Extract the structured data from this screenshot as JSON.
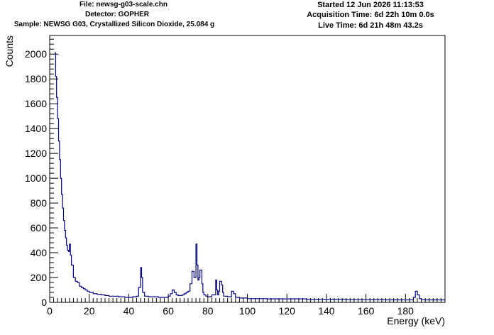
{
  "header": {
    "file": "File: newsg-g03-scale.chn",
    "detector": "Detector: GOPHER",
    "sample": "Sample: NEWSG G03, Crystallized Silicon Dioxide, 25.084 g",
    "started": "Started 12 Jun 2026 11:13:53",
    "acquisition_time": "Acquisition Time: 6d 22h 10m 0.0s",
    "live_time": "Live Time: 6d 21h 48m 43.2s"
  },
  "chart_data": {
    "type": "line",
    "title": "",
    "xlabel": "Energy (keV)",
    "ylabel": "Counts",
    "xlim": [
      0,
      200
    ],
    "ylim": [
      0,
      2150
    ],
    "x_ticks": [
      0,
      20,
      40,
      60,
      80,
      100,
      120,
      140,
      160,
      180
    ],
    "y_ticks": [
      0,
      200,
      400,
      600,
      800,
      1000,
      1200,
      1400,
      1600,
      1800,
      2000
    ],
    "grid": false,
    "line_color": "#000080",
    "series": [
      {
        "x": [
          2.5,
          3,
          3.5,
          4,
          4.5,
          5,
          5.5,
          6,
          6.5,
          7,
          7.5,
          8,
          8.5,
          9,
          9.5,
          10,
          10.5,
          11,
          12,
          13,
          14,
          15,
          16,
          17,
          18,
          19,
          20,
          22,
          24,
          26,
          28,
          30,
          32,
          35,
          38,
          40,
          42,
          44,
          45,
          46,
          46.5,
          47,
          48,
          50,
          55,
          60,
          61,
          62,
          63,
          64,
          65,
          67,
          68,
          69,
          70,
          71,
          72,
          73,
          74,
          74.5,
          75,
          75.5,
          76,
          77,
          77.5,
          78,
          79,
          80,
          82,
          84,
          84.5,
          85,
          85.5,
          86,
          87,
          87.5,
          88,
          89,
          90,
          92,
          93,
          94,
          96,
          100,
          110,
          120,
          130,
          140,
          150,
          160,
          170,
          180,
          184,
          185,
          186,
          187,
          188,
          190,
          195,
          200
        ],
        "y": [
          2010,
          1820,
          1650,
          1480,
          1300,
          1150,
          1000,
          870,
          760,
          660,
          580,
          520,
          460,
          420,
          410,
          470,
          380,
          300,
          200,
          170,
          160,
          130,
          120,
          110,
          100,
          90,
          80,
          70,
          65,
          60,
          55,
          50,
          50,
          45,
          40,
          40,
          45,
          50,
          120,
          280,
          200,
          80,
          50,
          45,
          40,
          50,
          70,
          100,
          80,
          60,
          55,
          60,
          70,
          80,
          90,
          150,
          250,
          200,
          470,
          300,
          180,
          200,
          260,
          150,
          80,
          60,
          50,
          45,
          60,
          180,
          100,
          60,
          90,
          170,
          140,
          80,
          50,
          50,
          45,
          90,
          70,
          40,
          35,
          30,
          28,
          28,
          25,
          25,
          22,
          22,
          20,
          20,
          40,
          90,
          60,
          30,
          22,
          20,
          20,
          20
        ]
      }
    ]
  }
}
